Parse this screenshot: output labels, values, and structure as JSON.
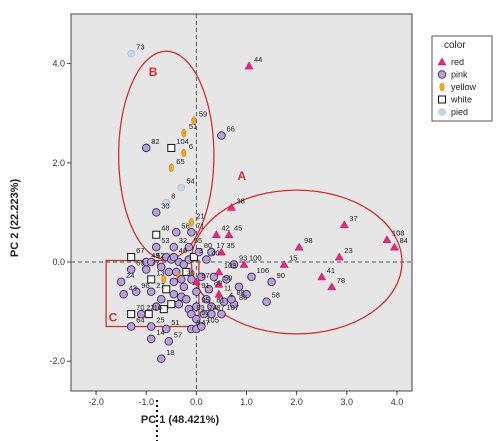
{
  "chart_data": {
    "type": "scatter",
    "xlabel": "PC 1 (48.421%)",
    "ylabel": "PC 2 (22.223%)",
    "xlim": [
      -2.5,
      4.3
    ],
    "ylim": [
      -2.6,
      5.0
    ],
    "xticks": [
      "-2.0",
      "-1.0",
      "0.0",
      "1.0",
      "2.0",
      "3.0",
      "4.0"
    ],
    "yticks": [
      "-2.0",
      "0.0",
      "2.0",
      "4.0"
    ],
    "legend": {
      "title": "color",
      "position": "right",
      "entries": [
        {
          "key": "red",
          "label": "red",
          "marker": "triangle",
          "color": "#e8287a"
        },
        {
          "key": "pink",
          "label": "pink",
          "marker": "circle",
          "color": "#b9a1d8"
        },
        {
          "key": "yellow",
          "label": "yellow",
          "marker": "ellipse",
          "color": "#f5a623"
        },
        {
          "key": "white",
          "label": "white",
          "marker": "square",
          "color": "#ffffff"
        },
        {
          "key": "pied",
          "label": "pied",
          "marker": "circle-light",
          "color": "#c6d5ec"
        }
      ]
    },
    "groups": [
      {
        "label": "A",
        "shape": "ellipse",
        "cx": 2.0,
        "cy": 0.0,
        "rx": 2.1,
        "ry": 1.45,
        "lx": 0.82,
        "ly": 1.65
      },
      {
        "label": "B",
        "shape": "ellipse",
        "cx": -0.6,
        "cy": 2.15,
        "rx": 0.95,
        "ry": 2.1,
        "lx": -0.95,
        "ly": 3.75
      },
      {
        "label": "C",
        "shape": "rect",
        "x0": -1.8,
        "x1": 0.05,
        "y0": -1.3,
        "y1": 0.03,
        "lx": -1.75,
        "ly": -1.2
      }
    ],
    "points": [
      {
        "label": "73",
        "x": -1.3,
        "y": 4.2,
        "cat": "pied"
      },
      {
        "label": "44",
        "x": 1.05,
        "y": 3.95,
        "cat": "red"
      },
      {
        "label": "59",
        "x": -0.05,
        "y": 2.85,
        "cat": "yellow"
      },
      {
        "label": "66",
        "x": 0.5,
        "y": 2.55,
        "cat": "pink"
      },
      {
        "label": "51",
        "x": -0.25,
        "y": 2.6,
        "cat": "yellow"
      },
      {
        "label": "82",
        "x": -1.0,
        "y": 2.3,
        "cat": "pink"
      },
      {
        "label": "104",
        "x": -0.5,
        "y": 2.3,
        "cat": "white"
      },
      {
        "label": "6",
        "x": -0.25,
        "y": 2.2,
        "cat": "yellow"
      },
      {
        "label": "65",
        "x": -0.5,
        "y": 1.9,
        "cat": "yellow"
      },
      {
        "label": "54",
        "x": -0.3,
        "y": 1.5,
        "cat": "pied"
      },
      {
        "label": "8",
        "x": -0.6,
        "y": 1.2,
        "cat": "pied"
      },
      {
        "label": "30",
        "x": -0.8,
        "y": 1.0,
        "cat": "pink"
      },
      {
        "label": "38",
        "x": 0.7,
        "y": 1.1,
        "cat": "red"
      },
      {
        "label": "37",
        "x": 2.95,
        "y": 0.75,
        "cat": "red"
      },
      {
        "label": "21",
        "x": -0.1,
        "y": 0.8,
        "cat": "yellow"
      },
      {
        "label": "56",
        "x": -0.4,
        "y": 0.6,
        "cat": "pink"
      },
      {
        "label": "71",
        "x": -0.1,
        "y": 0.6,
        "cat": "pink"
      },
      {
        "label": "48",
        "x": -0.8,
        "y": 0.55,
        "cat": "white"
      },
      {
        "label": "42",
        "x": 0.4,
        "y": 0.55,
        "cat": "red"
      },
      {
        "label": "45",
        "x": 0.65,
        "y": 0.55,
        "cat": "red"
      },
      {
        "label": "108",
        "x": 3.8,
        "y": 0.45,
        "cat": "red"
      },
      {
        "label": "84",
        "x": 3.95,
        "y": 0.3,
        "cat": "red"
      },
      {
        "label": "98",
        "x": 2.05,
        "y": 0.3,
        "cat": "red"
      },
      {
        "label": "23",
        "x": 2.85,
        "y": 0.1,
        "cat": "red"
      },
      {
        "label": "53",
        "x": -0.8,
        "y": 0.3,
        "cat": "pink"
      },
      {
        "label": "32",
        "x": -0.45,
        "y": 0.3,
        "cat": "pink"
      },
      {
        "label": "55",
        "x": -0.15,
        "y": 0.3,
        "cat": "pink"
      },
      {
        "label": "3",
        "x": -0.05,
        "y": 0.1,
        "cat": "white"
      },
      {
        "label": "40",
        "x": 0.2,
        "y": 0.05,
        "cat": "pink"
      },
      {
        "label": "67",
        "x": -1.3,
        "y": 0.1,
        "cat": "white"
      },
      {
        "label": "46",
        "x": -0.45,
        "y": 0.1,
        "cat": "pink"
      },
      {
        "label": "80",
        "x": 0.05,
        "y": 0.2,
        "cat": "pink"
      },
      {
        "label": "17",
        "x": 0.3,
        "y": 0.2,
        "cat": "pink"
      },
      {
        "label": "35",
        "x": 0.5,
        "y": 0.2,
        "cat": "red"
      },
      {
        "label": "93",
        "x": 0.75,
        "y": -0.05,
        "cat": "pink"
      },
      {
        "label": "100",
        "x": 0.95,
        "y": -0.05,
        "cat": "red"
      },
      {
        "label": "15",
        "x": 1.75,
        "y": -0.05,
        "cat": "red"
      },
      {
        "label": "60",
        "x": -1.3,
        "y": -0.15,
        "cat": "pink"
      },
      {
        "label": "77",
        "x": -1.0,
        "y": -0.15,
        "cat": "pink"
      },
      {
        "label": "49",
        "x": -1.0,
        "y": 0.0,
        "cat": "pink"
      },
      {
        "label": "62",
        "x": -0.9,
        "y": 0.0,
        "cat": "pink"
      },
      {
        "label": "24",
        "x": -1.5,
        "y": -0.4,
        "cat": "pink"
      },
      {
        "label": "13",
        "x": -0.9,
        "y": -0.35,
        "cat": "white"
      },
      {
        "label": "109",
        "x": 0.45,
        "y": -0.2,
        "cat": "red"
      },
      {
        "label": "106",
        "x": 1.1,
        "y": -0.3,
        "cat": "pink"
      },
      {
        "label": "41",
        "x": 2.5,
        "y": -0.3,
        "cat": "red"
      },
      {
        "label": "97",
        "x": 0.0,
        "y": -0.4,
        "cat": "red"
      },
      {
        "label": "50",
        "x": 0.45,
        "y": -0.45,
        "cat": "red"
      },
      {
        "label": "90",
        "x": 1.5,
        "y": -0.4,
        "cat": "pink"
      },
      {
        "label": "20",
        "x": -0.3,
        "y": -0.35,
        "cat": "pink"
      },
      {
        "label": "43",
        "x": -1.45,
        "y": -0.65,
        "cat": "pink"
      },
      {
        "label": "96",
        "x": -1.2,
        "y": -0.6,
        "cat": "pink"
      },
      {
        "label": "27",
        "x": -0.9,
        "y": -0.6,
        "cat": "pink"
      },
      {
        "label": "91",
        "x": 0.0,
        "y": -0.6,
        "cat": "pink"
      },
      {
        "label": "89",
        "x": 0.25,
        "y": -0.55,
        "cat": "pink"
      },
      {
        "label": "11",
        "x": 0.45,
        "y": -0.65,
        "cat": "red"
      },
      {
        "label": "78",
        "x": 2.7,
        "y": -0.5,
        "cat": "red"
      },
      {
        "label": "4",
        "x": 0.55,
        "y": -0.8,
        "cat": "pink"
      },
      {
        "label": "86",
        "x": 0.75,
        "y": -0.85,
        "cat": "pink"
      },
      {
        "label": "81",
        "x": 0.3,
        "y": -0.9,
        "cat": "pink"
      },
      {
        "label": "58",
        "x": 1.4,
        "y": -0.8,
        "cat": "pink"
      },
      {
        "label": "95",
        "x": 0.0,
        "y": -0.9,
        "cat": "pink"
      },
      {
        "label": "88",
        "x": 0.7,
        "y": -0.75,
        "cat": "pink"
      },
      {
        "label": "83",
        "x": -0.1,
        "y": -1.05,
        "cat": "pink"
      },
      {
        "label": "52",
        "x": 0.0,
        "y": -1.15,
        "cat": "pink"
      },
      {
        "label": "74",
        "x": 0.15,
        "y": -1.05,
        "cat": "pink"
      },
      {
        "label": "87",
        "x": 0.3,
        "y": -1.05,
        "cat": "pink"
      },
      {
        "label": "107",
        "x": 0.5,
        "y": -1.05,
        "cat": "pink"
      },
      {
        "label": "70",
        "x": -1.3,
        "y": -1.05,
        "cat": "white"
      },
      {
        "label": "22",
        "x": -1.1,
        "y": -1.05,
        "cat": "pink"
      },
      {
        "label": "16",
        "x": -0.95,
        "y": -1.05,
        "cat": "white"
      },
      {
        "label": "64",
        "x": -1.3,
        "y": -1.3,
        "cat": "pink"
      },
      {
        "label": "25",
        "x": -0.9,
        "y": -1.3,
        "cat": "pink"
      },
      {
        "label": "9",
        "x": -0.1,
        "y": -1.35,
        "cat": "pink"
      },
      {
        "label": "47",
        "x": 0.0,
        "y": -1.35,
        "cat": "pink"
      },
      {
        "label": "105",
        "x": 0.1,
        "y": -1.3,
        "cat": "pink"
      },
      {
        "label": "51",
        "x": -0.6,
        "y": -1.35,
        "cat": "pink"
      },
      {
        "label": "14",
        "x": -0.9,
        "y": -1.55,
        "cat": "pink"
      },
      {
        "label": "57",
        "x": -0.55,
        "y": -1.6,
        "cat": "pink"
      },
      {
        "label": "18",
        "x": -0.7,
        "y": -1.95,
        "cat": "pink"
      }
    ],
    "extra_markers": [
      {
        "x": -0.6,
        "y": 0.1,
        "cat": "pink"
      },
      {
        "x": -0.5,
        "y": 0.05,
        "cat": "pink"
      },
      {
        "x": -0.35,
        "y": 0.0,
        "cat": "pink"
      },
      {
        "x": -0.25,
        "y": -0.05,
        "cat": "pink"
      },
      {
        "x": -0.15,
        "y": 0.05,
        "cat": "pink"
      },
      {
        "x": -0.7,
        "y": -0.1,
        "cat": "pink"
      },
      {
        "x": -0.55,
        "y": -0.2,
        "cat": "pink"
      },
      {
        "x": -0.4,
        "y": -0.2,
        "cat": "pink"
      },
      {
        "x": -0.2,
        "y": -0.2,
        "cat": "white"
      },
      {
        "x": -0.65,
        "y": -0.35,
        "cat": "yellow"
      },
      {
        "x": -0.45,
        "y": -0.4,
        "cat": "pink"
      },
      {
        "x": -0.25,
        "y": -0.5,
        "cat": "pink"
      },
      {
        "x": -0.1,
        "y": -0.35,
        "cat": "pink"
      },
      {
        "x": -0.6,
        "y": -0.55,
        "cat": "white"
      },
      {
        "x": -0.45,
        "y": -0.65,
        "cat": "pink"
      },
      {
        "x": -0.3,
        "y": -0.7,
        "cat": "pink"
      },
      {
        "x": -0.7,
        "y": -0.75,
        "cat": "pink"
      },
      {
        "x": -0.5,
        "y": -0.85,
        "cat": "white"
      },
      {
        "x": -0.35,
        "y": -0.85,
        "cat": "pink"
      },
      {
        "x": -0.2,
        "y": -0.75,
        "cat": "pink"
      },
      {
        "x": -0.8,
        "y": -0.9,
        "cat": "pink"
      },
      {
        "x": -0.65,
        "y": -0.95,
        "cat": "white"
      },
      {
        "x": -0.15,
        "y": -0.95,
        "cat": "pink"
      },
      {
        "x": 0.1,
        "y": -0.3,
        "cat": "pink"
      },
      {
        "x": 0.2,
        "y": -0.75,
        "cat": "pink"
      },
      {
        "x": 0.35,
        "y": -0.3,
        "cat": "pink"
      },
      {
        "x": 0.6,
        "y": -0.35,
        "cat": "pink"
      },
      {
        "x": 0.85,
        "y": -0.5,
        "cat": "pink"
      },
      {
        "x": 1.0,
        "y": -0.65,
        "cat": "pink"
      },
      {
        "x": -0.35,
        "y": -0.3,
        "cat": "yellow"
      }
    ]
  }
}
